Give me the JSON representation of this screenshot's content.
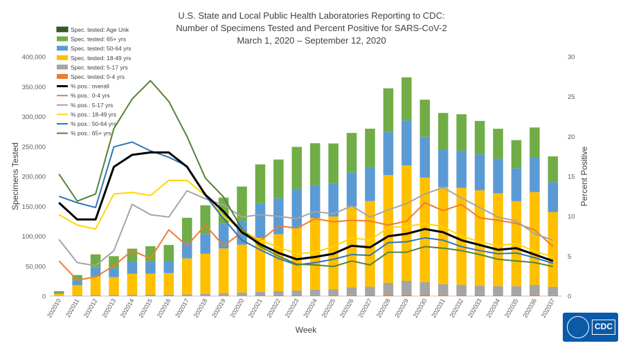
{
  "header": {
    "title_line1": "U.S. State and Local Public Health Laboratories Reporting to CDC:",
    "title_line2": "Number of Specimens Tested and Percent Positive for SARS-CoV-2",
    "title_line3": "March 1, 2020 – September 12, 2020"
  },
  "logo": {
    "text": "CDC"
  },
  "chart_data": {
    "type": "bar",
    "title": "U.S. State and Local Public Health Laboratories Reporting to CDC: Number of Specimens Tested and Percent Positive for SARS-CoV-2",
    "subtitle": "March 1, 2020 – September 12, 2020",
    "xlabel": "Week",
    "ylabel": "Specimens Tested",
    "y2label": "Percent Positive",
    "ylim": [
      0,
      400000
    ],
    "y2lim": [
      0,
      30
    ],
    "y_ticks": [
      "0",
      "50,000",
      "100,000",
      "150,000",
      "200,000",
      "250,000",
      "300,000",
      "350,000",
      "400,000"
    ],
    "y2_ticks": [
      "0",
      "5",
      "10",
      "15",
      "20",
      "25",
      "30"
    ],
    "grid": false,
    "legend_position": "top-left",
    "categories": [
      "202010",
      "202011",
      "202012",
      "202013",
      "202014",
      "202015",
      "202016",
      "202017",
      "202018",
      "202019",
      "202020",
      "202021",
      "202022",
      "202023",
      "202024",
      "202025",
      "202026",
      "202027",
      "202028",
      "202029",
      "202030",
      "202031",
      "202032",
      "202033",
      "202034",
      "202035",
      "202036",
      "202037"
    ],
    "bar_series": [
      {
        "name": "Spec. tested: 0-4 yrs",
        "color": "#ed7d31",
        "values": [
          200,
          300,
          400,
          400,
          500,
          500,
          500,
          600,
          700,
          800,
          1000,
          1100,
          1200,
          1300,
          1400,
          1500,
          1600,
          1700,
          2200,
          2500,
          2200,
          2000,
          1900,
          1700,
          1600,
          1600,
          1700,
          1400
        ]
      },
      {
        "name": "Spec. tested: 5-17 yrs",
        "color": "#a5a5a5",
        "values": [
          500,
          800,
          1300,
          1300,
          1700,
          1800,
          1900,
          2200,
          3000,
          3800,
          5000,
          6000,
          7000,
          8000,
          9000,
          9500,
          13000,
          14000,
          20000,
          23000,
          21000,
          18000,
          17000,
          16000,
          15000,
          15000,
          17000,
          14000
        ]
      },
      {
        "name": "Spec. tested: 18-49 yrs",
        "color": "#ffc000",
        "values": [
          3000,
          17000,
          31000,
          30000,
          35000,
          35000,
          36000,
          60000,
          67000,
          75000,
          80000,
          90000,
          95000,
          105000,
          120000,
          122000,
          135000,
          143000,
          180000,
          193000,
          175000,
          162000,
          162000,
          159000,
          155000,
          142000,
          155000,
          125000
        ]
      },
      {
        "name": "Spec. tested: 50-64 yrs",
        "color": "#5b9bd5",
        "values": [
          1500,
          8000,
          15000,
          15000,
          20000,
          20000,
          20000,
          28000,
          33000,
          41000,
          40000,
          58000,
          60000,
          65000,
          55000,
          55000,
          57000,
          57000,
          72000,
          75000,
          68000,
          62000,
          62000,
          60000,
          58000,
          55000,
          58000,
          50000
        ]
      },
      {
        "name": "Spec. tested: 65+ yrs",
        "color": "#70ad47",
        "values": [
          3000,
          9000,
          22000,
          20000,
          22000,
          26000,
          27000,
          40000,
          48000,
          44000,
          57000,
          65000,
          65000,
          70000,
          70000,
          67000,
          66000,
          64000,
          73000,
          72000,
          62000,
          62000,
          61000,
          56000,
          50000,
          47000,
          50000,
          43000
        ]
      },
      {
        "name": "Spec. tested: Age Unk",
        "color": "#375623",
        "values": [
          0,
          0,
          0,
          0,
          0,
          0,
          0,
          0,
          0,
          0,
          0,
          0,
          0,
          0,
          0,
          0,
          0,
          0,
          0,
          0,
          0,
          0,
          0,
          0,
          0,
          0,
          0,
          0
        ]
      }
    ],
    "line_series": [
      {
        "name": "% pos.: overall",
        "color": "#000000",
        "values": [
          11.7,
          9.6,
          9.6,
          16.2,
          17.7,
          18.0,
          18.0,
          16.2,
          12.7,
          10.6,
          8.0,
          6.5,
          5.4,
          4.6,
          4.9,
          5.3,
          6.3,
          6.1,
          7.5,
          7.8,
          8.4,
          8.0,
          7.0,
          6.4,
          5.8,
          6.0,
          5.2,
          4.4
        ]
      },
      {
        "name": "% pos.: 0-4 yrs",
        "color": "#ed7d31",
        "values": [
          4.4,
          2.0,
          2.4,
          3.8,
          5.7,
          4.7,
          8.3,
          6.3,
          8.9,
          6.3,
          8.0,
          6.9,
          8.8,
          8.5,
          9.7,
          9.3,
          9.5,
          9.4,
          8.9,
          9.4,
          11.7,
          10.7,
          11.5,
          9.8,
          9.5,
          9.1,
          8.3,
          6.2
        ]
      },
      {
        "name": "% pos.: 5-17 yrs",
        "color": "#a5a5a5",
        "values": [
          7.1,
          4.2,
          3.8,
          5.7,
          11.5,
          10.2,
          9.9,
          13.2,
          12.2,
          11.4,
          9.9,
          10.2,
          10.0,
          9.7,
          10.6,
          10.3,
          11.3,
          9.9,
          10.8,
          11.6,
          12.8,
          13.6,
          12.3,
          11.1,
          9.9,
          9.4,
          7.8,
          7.0
        ]
      },
      {
        "name": "% pos.: 18-49 yrs",
        "color": "#ffd700",
        "values": [
          10.2,
          8.9,
          8.4,
          12.8,
          13.0,
          12.6,
          14.5,
          14.5,
          12.6,
          10.0,
          8.2,
          7.0,
          6.1,
          5.3,
          5.5,
          6.2,
          7.3,
          7.0,
          8.6,
          8.7,
          9.1,
          8.7,
          7.5,
          6.8,
          6.3,
          6.6,
          5.6,
          4.9
        ]
      },
      {
        "name": "% pos.: 50-64 yrs",
        "color": "#2e75b6",
        "values": [
          12.5,
          11.7,
          11.1,
          18.7,
          19.3,
          18.2,
          17.4,
          16.3,
          12.6,
          9.7,
          7.0,
          5.8,
          4.7,
          3.9,
          4.2,
          4.6,
          5.2,
          5.1,
          6.7,
          6.8,
          7.3,
          7.0,
          6.2,
          5.7,
          5.3,
          5.4,
          4.8,
          4.1
        ]
      },
      {
        "name": "% pos.: 65+ yrs",
        "color": "#548235",
        "values": [
          15.3,
          11.9,
          12.8,
          21.0,
          24.7,
          27.0,
          24.4,
          20.0,
          14.8,
          12.4,
          8.4,
          6.2,
          5.0,
          4.0,
          3.9,
          3.7,
          4.4,
          3.9,
          5.5,
          5.5,
          6.2,
          6.0,
          5.7,
          5.2,
          4.6,
          4.4,
          4.2,
          3.7
        ]
      }
    ],
    "legend_order": [
      "Spec. tested: Age Unk",
      "Spec. tested: 65+ yrs",
      "Spec. tested: 50-64 yrs",
      "Spec. tested: 18-49 yrs",
      "Spec. tested: 5-17 yrs",
      "Spec. tested: 0-4 yrs",
      "% pos.: overall",
      "% pos.: 0-4 yrs",
      "% pos.: 5-17 yrs",
      "% pos.: 18-49 yrs",
      "% pos.: 50-64 yrs",
      "% pos.: 65+ yrs"
    ]
  }
}
